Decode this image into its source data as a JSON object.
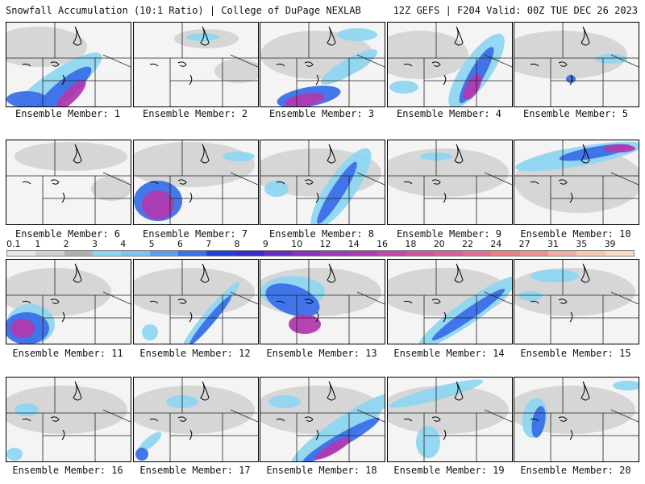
{
  "header": {
    "left_title": "Snowfall Accumulation (10:1 Ratio) | College of DuPage NEXLAB",
    "right_title": "12Z GEFS | F204 Valid: 00Z TUE DEC 26 2023"
  },
  "colorbar": {
    "labels": [
      "0.1",
      "1",
      "2",
      "3",
      "4",
      "5",
      "6",
      "7",
      "8",
      "9",
      "10",
      "12",
      "14",
      "16",
      "18",
      "20",
      "22",
      "24",
      "27",
      "31",
      "35",
      "39"
    ],
    "colors": [
      "#e8e8e8",
      "#cfcfcf",
      "#b0b0b0",
      "#8fd6f0",
      "#7cc4f2",
      "#5aa0ee",
      "#3a70e8",
      "#1f40d8",
      "#3a2ad0",
      "#6a2ac8",
      "#8a30c0",
      "#9c3cb8",
      "#b03ab0",
      "#c048a8",
      "#cc55a0",
      "#d8609a",
      "#e07090",
      "#e88080",
      "#f09090",
      "#f2b0a0",
      "#f5c8b0",
      "#f8dcc8"
    ]
  },
  "panels": [
    {
      "label": "Ensemble Member: 1",
      "colors": {
        "light": "#8fd6f0",
        "mid": "#3a70e8",
        "heavy": "#b03ab0"
      }
    },
    {
      "label": "Ensemble Member: 2"
    },
    {
      "label": "Ensemble Member: 3"
    },
    {
      "label": "Ensemble Member: 4"
    },
    {
      "label": "Ensemble Member: 5"
    },
    {
      "label": "Ensemble Member: 6"
    },
    {
      "label": "Ensemble Member: 7"
    },
    {
      "label": "Ensemble Member: 8"
    },
    {
      "label": "Ensemble Member: 9"
    },
    {
      "label": "Ensemble Member: 10"
    },
    {
      "label": "Ensemble Member: 11"
    },
    {
      "label": "Ensemble Member: 12"
    },
    {
      "label": "Ensemble Member: 13"
    },
    {
      "label": "Ensemble Member: 14"
    },
    {
      "label": "Ensemble Member: 15"
    },
    {
      "label": "Ensemble Member: 16"
    },
    {
      "label": "Ensemble Member: 17"
    },
    {
      "label": "Ensemble Member: 18"
    },
    {
      "label": "Ensemble Member: 19"
    },
    {
      "label": "Ensemble Member: 20"
    }
  ]
}
